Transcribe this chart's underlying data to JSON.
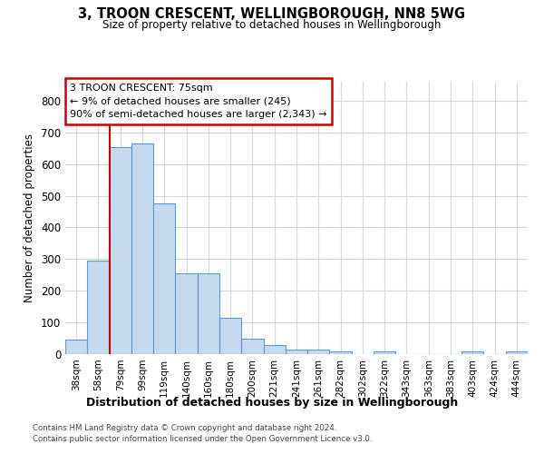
{
  "title1": "3, TROON CRESCENT, WELLINGBOROUGH, NN8 5WG",
  "title2": "Size of property relative to detached houses in Wellingborough",
  "xlabel": "Distribution of detached houses by size in Wellingborough",
  "ylabel": "Number of detached properties",
  "categories": [
    "38sqm",
    "58sqm",
    "79sqm",
    "99sqm",
    "119sqm",
    "140sqm",
    "160sqm",
    "180sqm",
    "200sqm",
    "221sqm",
    "241sqm",
    "261sqm",
    "282sqm",
    "302sqm",
    "322sqm",
    "343sqm",
    "363sqm",
    "383sqm",
    "403sqm",
    "424sqm",
    "444sqm"
  ],
  "values": [
    45,
    295,
    655,
    665,
    475,
    255,
    255,
    115,
    50,
    28,
    15,
    15,
    8,
    0,
    8,
    0,
    0,
    0,
    8,
    0,
    8
  ],
  "bar_color": "#c5d9f0",
  "bar_edgecolor": "#5b9bd5",
  "vline_bar_index": 2,
  "vline_color": "#cc0000",
  "annotation_line1": "3 TROON CRESCENT: 75sqm",
  "annotation_line2": "← 9% of detached houses are smaller (245)",
  "annotation_line3": "90% of semi-detached houses are larger (2,343) →",
  "annotation_box_edgecolor": "#cc0000",
  "annotation_box_facecolor": "#ffffff",
  "ylim": [
    0,
    860
  ],
  "yticks": [
    0,
    100,
    200,
    300,
    400,
    500,
    600,
    700,
    800
  ],
  "grid_color": "#d0d8e8",
  "bg_color": "#ffffff",
  "footer1": "Contains HM Land Registry data © Crown copyright and database right 2024.",
  "footer2": "Contains public sector information licensed under the Open Government Licence v3.0."
}
